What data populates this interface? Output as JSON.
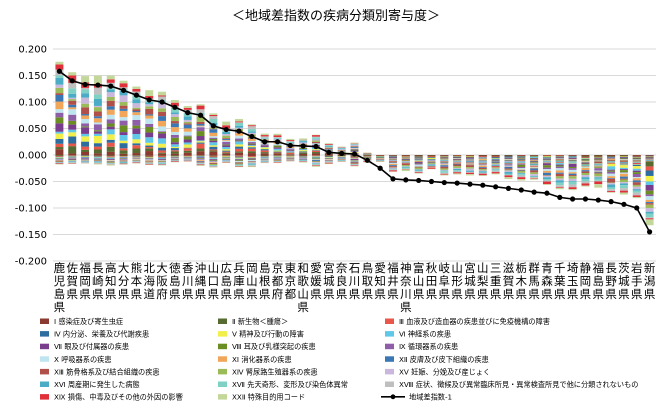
{
  "chart_data": {
    "type": "bar",
    "stacked": true,
    "title": "＜地域差指数の疾病分類別寄与度＞",
    "xlabel": "",
    "ylabel": "",
    "ylim": [
      -0.2,
      0.2
    ],
    "yticks": [
      "0.200",
      "0.150",
      "0.100",
      "0.050",
      "0.000",
      "-0.050",
      "-0.100",
      "-0.150",
      "-0.200"
    ],
    "grid": true,
    "legend_position": "bottom",
    "categories": [
      "鹿児島県",
      "佐賀県",
      "福岡県",
      "長崎県",
      "高知県",
      "大分県",
      "熊本県",
      "北海道",
      "大阪府",
      "徳島県",
      "香川県",
      "沖縄県",
      "山口県",
      "広島県",
      "兵庫県",
      "岡山県",
      "島根県",
      "京都府",
      "東京都",
      "和歌山県",
      "愛媛県",
      "宮城県",
      "奈良県",
      "石川県",
      "鳥取県",
      "愛知県",
      "福井県",
      "神奈川県",
      "富山県",
      "秋田県",
      "岐阜県",
      "山形県",
      "宮城県",
      "山梨県",
      "三重県",
      "滋賀県",
      "栃木県",
      "群馬県",
      "青森県",
      "千葉県",
      "埼玉県",
      "静岡県",
      "福島県",
      "長野県",
      "茨城県",
      "岩手県",
      "新潟県"
    ],
    "line_series": {
      "name": "地域差指数-1",
      "color": "#000000",
      "values": [
        0.158,
        0.14,
        0.133,
        0.132,
        0.13,
        0.122,
        0.113,
        0.104,
        0.1,
        0.09,
        0.08,
        0.075,
        0.055,
        0.048,
        0.045,
        0.035,
        0.025,
        0.025,
        0.018,
        0.017,
        0.016,
        0.005,
        0.003,
        0.002,
        -0.01,
        -0.025,
        -0.045,
        -0.047,
        -0.048,
        -0.05,
        -0.052,
        -0.053,
        -0.055,
        -0.057,
        -0.06,
        -0.063,
        -0.066,
        -0.07,
        -0.072,
        -0.08,
        -0.083,
        -0.083,
        -0.085,
        -0.088,
        -0.093,
        -0.1,
        -0.145
      ]
    },
    "series": [
      {
        "name": "Ⅰ 感染症及び寄生虫症",
        "color": "#8b3a2f"
      },
      {
        "name": "Ⅱ 新生物＜腫瘍＞",
        "color": "#556b2f"
      },
      {
        "name": "Ⅲ 血液及び造血器の疾患並びに免疫機構の障害",
        "color": "#e8574a"
      },
      {
        "name": "Ⅳ 内分泌、栄養及び代謝疾患",
        "color": "#2e6e9e"
      },
      {
        "name": "Ⅴ 精神及び行動の障害",
        "color": "#f3ef4a"
      },
      {
        "name": "Ⅵ 神経系の疾患",
        "color": "#5fc8e8"
      },
      {
        "name": "Ⅶ 眼及び付属器の疾患",
        "color": "#7a3c8c"
      },
      {
        "name": "Ⅷ 耳及び乳様突起の疾患",
        "color": "#6b8e23"
      },
      {
        "name": "Ⅸ 循環器系の疾患",
        "color": "#8e5fa8"
      },
      {
        "name": "Ⅹ 呼吸器系の疾患",
        "color": "#bfe6f0"
      },
      {
        "name": "ⅩⅠ 消化器系の疾患",
        "color": "#f2a65a"
      },
      {
        "name": "ⅩⅡ 皮膚及び皮下組織の疾患",
        "color": "#3a77b5"
      },
      {
        "name": "ⅩⅢ 筋骨格系及び結合組織の疾患",
        "color": "#b05048"
      },
      {
        "name": "ⅩⅣ 腎尿路生殖器系の疾患",
        "color": "#9bbb59"
      },
      {
        "name": "ⅩⅤ 妊娠、分娩及び産じょく",
        "color": "#c9b8dc"
      },
      {
        "name": "ⅩⅥ 周産期に発生した病態",
        "color": "#4bacc6"
      },
      {
        "name": "ⅩⅦ 先天奇形、変形及び染色体異常",
        "color": "#7fd1c4"
      },
      {
        "name": "ⅩⅧ 症状、徴候及び異常臨床所見・異常検査所見で他に分類されないもの",
        "color": "#bfbfbf"
      },
      {
        "name": "ⅩⅨ 損傷、中毒及びその他の外因の影響",
        "color": "#e0303a"
      },
      {
        "name": "ⅩⅩⅡ 特殊目的用コード",
        "color": "#c4d79b"
      }
    ]
  }
}
